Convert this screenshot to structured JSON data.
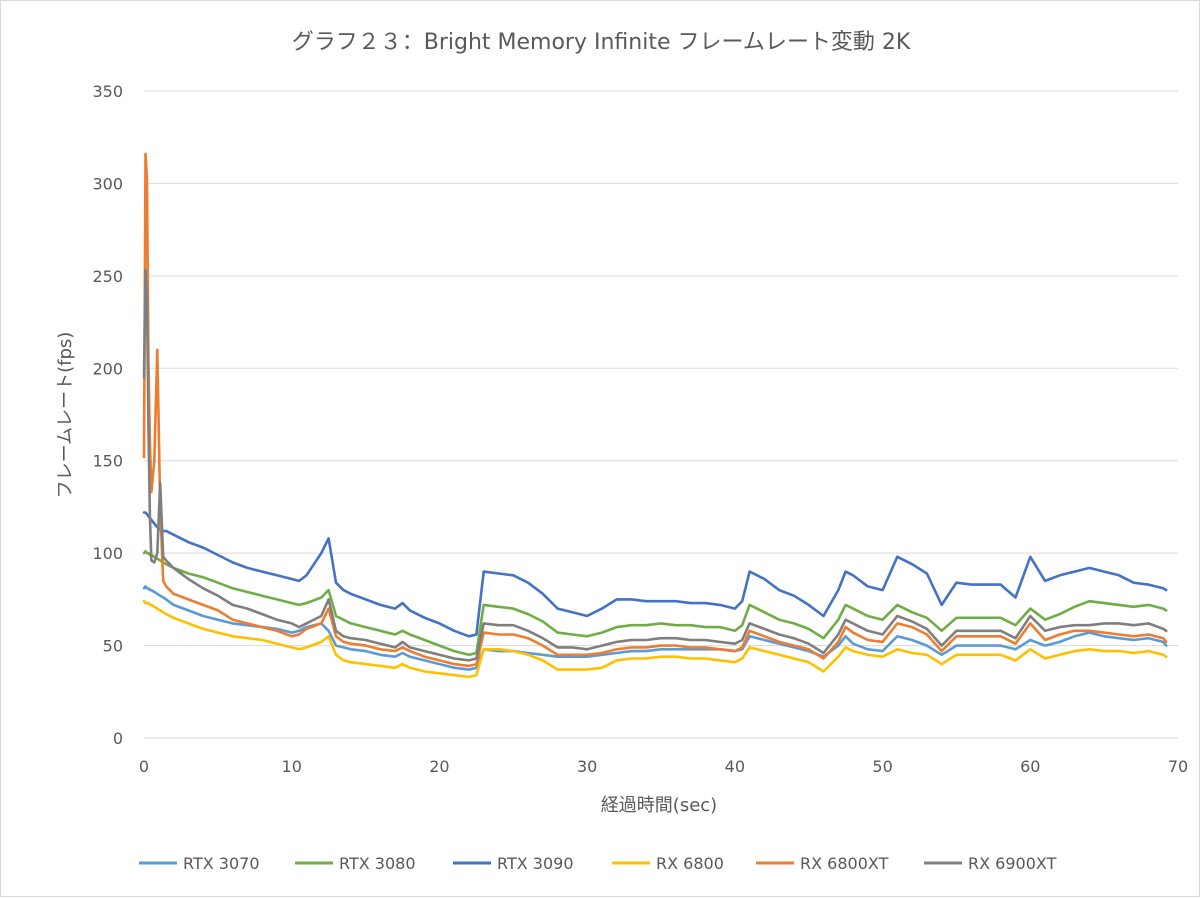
{
  "chart_data": {
    "type": "line",
    "title": "グラフ２３：Bright Memory Infinite フレームレート変動 2K",
    "xlabel": "経過時間(sec)",
    "ylabel": "フレームレート(fps)",
    "xlim": [
      0,
      70
    ],
    "ylim": [
      0,
      350
    ],
    "x_ticks": [
      "0",
      "10",
      "20",
      "30",
      "40",
      "50",
      "60",
      "70"
    ],
    "y_ticks": [
      "0",
      "50",
      "100",
      "150",
      "200",
      "250",
      "300",
      "350"
    ],
    "grid": true,
    "legend_position": "bottom",
    "x": [
      0,
      0.1,
      0.2,
      0.3,
      0.4,
      0.5,
      0.7,
      0.9,
      1.1,
      1.3,
      1.5,
      2,
      3,
      4,
      5,
      6,
      7,
      8,
      9,
      10,
      10.5,
      11,
      12,
      12.5,
      13,
      13.5,
      14,
      15,
      16,
      17,
      17.5,
      18,
      19,
      20,
      21,
      22,
      22.5,
      23,
      24,
      25,
      26,
      27,
      28,
      29,
      30,
      31,
      32,
      33,
      34,
      35,
      36,
      37,
      38,
      39,
      40,
      40.5,
      41,
      42,
      43,
      44,
      45,
      46,
      47,
      47.5,
      48,
      49,
      50,
      51,
      52,
      53,
      54,
      55,
      56,
      57,
      58,
      59,
      60,
      61,
      62,
      63,
      64,
      65,
      66,
      67,
      68,
      69,
      69.2
    ],
    "series": [
      {
        "name": "RTX 3070",
        "color": "#5b9bd5",
        "values": [
          81,
          82,
          81,
          81,
          80,
          80,
          79,
          78,
          77,
          76,
          75,
          72,
          69,
          66,
          64,
          62,
          61,
          60,
          59,
          57,
          58,
          60,
          62,
          58,
          50,
          49,
          48,
          47,
          45,
          44,
          46,
          44,
          42,
          40,
          38,
          37,
          38,
          48,
          47,
          47,
          46,
          45,
          44,
          44,
          44,
          45,
          46,
          47,
          47,
          48,
          48,
          48,
          48,
          48,
          47,
          48,
          55,
          53,
          51,
          49,
          47,
          44,
          50,
          55,
          51,
          48,
          47,
          55,
          53,
          50,
          45,
          50,
          50,
          50,
          50,
          48,
          53,
          50,
          52,
          55,
          57,
          55,
          54,
          53,
          54,
          52,
          50
        ]
      },
      {
        "name": "RTX 3080",
        "color": "#70ad47",
        "values": [
          100,
          101,
          100,
          100,
          99,
          99,
          98,
          97,
          96,
          95,
          94,
          92,
          89,
          87,
          84,
          81,
          79,
          77,
          75,
          73,
          72,
          73,
          76,
          80,
          66,
          64,
          62,
          60,
          58,
          56,
          58,
          56,
          53,
          50,
          47,
          45,
          46,
          72,
          71,
          70,
          67,
          63,
          57,
          56,
          55,
          57,
          60,
          61,
          61,
          62,
          61,
          61,
          60,
          60,
          58,
          61,
          72,
          68,
          64,
          62,
          59,
          54,
          64,
          72,
          70,
          66,
          64,
          72,
          68,
          65,
          58,
          65,
          65,
          65,
          65,
          61,
          70,
          64,
          67,
          71,
          74,
          73,
          72,
          71,
          72,
          70,
          69
        ]
      },
      {
        "name": "RTX 3090",
        "color": "#4472c4",
        "values": [
          122,
          122,
          121,
          120,
          119,
          118,
          116,
          114,
          113,
          112,
          112,
          110,
          106,
          103,
          99,
          95,
          92,
          90,
          88,
          86,
          85,
          88,
          100,
          108,
          84,
          80,
          78,
          75,
          72,
          70,
          73,
          69,
          65,
          62,
          58,
          55,
          56,
          90,
          89,
          88,
          84,
          78,
          70,
          68,
          66,
          70,
          75,
          75,
          74,
          74,
          74,
          73,
          73,
          72,
          70,
          74,
          90,
          86,
          80,
          77,
          72,
          66,
          80,
          90,
          88,
          82,
          80,
          98,
          94,
          89,
          72,
          84,
          83,
          83,
          83,
          76,
          98,
          85,
          88,
          90,
          92,
          90,
          88,
          84,
          83,
          81,
          80
        ]
      },
      {
        "name": "RX 6800",
        "color": "#ffc000",
        "values": [
          74,
          73,
          73,
          73,
          72,
          72,
          71,
          70,
          69,
          68,
          67,
          65,
          62,
          59,
          57,
          55,
          54,
          53,
          51,
          49,
          48,
          49,
          52,
          55,
          45,
          42,
          41,
          40,
          39,
          38,
          40,
          38,
          36,
          35,
          34,
          33,
          34,
          48,
          48,
          47,
          45,
          42,
          37,
          37,
          37,
          38,
          42,
          43,
          43,
          44,
          44,
          43,
          43,
          42,
          41,
          43,
          49,
          47,
          45,
          43,
          41,
          36,
          44,
          49,
          47,
          45,
          44,
          48,
          46,
          45,
          40,
          45,
          45,
          45,
          45,
          42,
          48,
          43,
          45,
          47,
          48,
          47,
          47,
          46,
          47,
          45,
          44
        ]
      },
      {
        "name": "RX 6800XT",
        "color": "#ed7d31",
        "values": [
          152,
          316,
          302,
          205,
          160,
          133,
          150,
          210,
          125,
          85,
          82,
          78,
          75,
          72,
          69,
          64,
          62,
          60,
          58,
          55,
          56,
          59,
          62,
          70,
          55,
          52,
          51,
          50,
          48,
          47,
          49,
          47,
          44,
          42,
          40,
          39,
          40,
          57,
          56,
          56,
          54,
          50,
          45,
          45,
          45,
          46,
          48,
          49,
          49,
          50,
          50,
          49,
          49,
          48,
          47,
          49,
          58,
          55,
          52,
          50,
          48,
          43,
          52,
          60,
          57,
          53,
          52,
          62,
          60,
          56,
          47,
          55,
          55,
          55,
          55,
          51,
          62,
          53,
          56,
          58,
          58,
          57,
          56,
          55,
          56,
          54,
          52
        ]
      },
      {
        "name": "RX 6900XT",
        "color": "#7f7f7f",
        "values": [
          195,
          253,
          240,
          170,
          120,
          96,
          95,
          100,
          138,
          98,
          96,
          92,
          86,
          81,
          77,
          72,
          70,
          67,
          64,
          62,
          60,
          62,
          66,
          75,
          58,
          55,
          54,
          53,
          51,
          49,
          52,
          49,
          47,
          45,
          43,
          42,
          43,
          62,
          61,
          61,
          58,
          54,
          49,
          49,
          48,
          50,
          52,
          53,
          53,
          54,
          54,
          53,
          53,
          52,
          51,
          53,
          62,
          59,
          56,
          54,
          51,
          46,
          56,
          64,
          62,
          58,
          56,
          66,
          63,
          59,
          50,
          58,
          58,
          58,
          58,
          54,
          66,
          58,
          60,
          61,
          61,
          62,
          62,
          61,
          62,
          59,
          58
        ]
      }
    ]
  }
}
